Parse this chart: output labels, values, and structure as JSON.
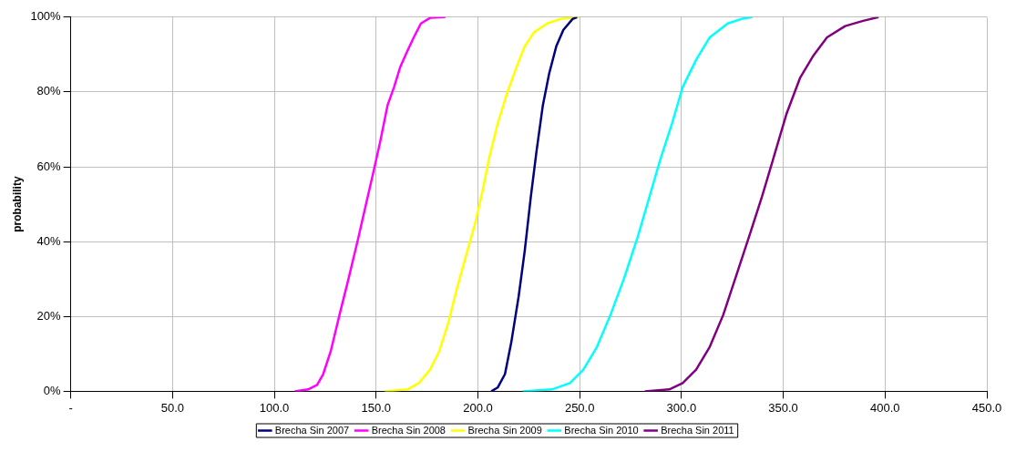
{
  "chart_data": {
    "type": "line",
    "ylabel": "probability",
    "xlim": [
      0,
      450
    ],
    "ylim": [
      0,
      100
    ],
    "xticks": [
      {
        "value": 0,
        "label": "-"
      },
      {
        "value": 50,
        "label": "50.0"
      },
      {
        "value": 100,
        "label": "100.0"
      },
      {
        "value": 150,
        "label": "150.0"
      },
      {
        "value": 200,
        "label": "200.0"
      },
      {
        "value": 250,
        "label": "250.0"
      },
      {
        "value": 300,
        "label": "300.0"
      },
      {
        "value": 350,
        "label": "350.0"
      },
      {
        "value": 400,
        "label": "400.0"
      },
      {
        "value": 450,
        "label": "450.0"
      }
    ],
    "yticks": [
      {
        "value": 0,
        "label": "0%"
      },
      {
        "value": 20,
        "label": "20%"
      },
      {
        "value": 40,
        "label": "40%"
      },
      {
        "value": 60,
        "label": "60%"
      },
      {
        "value": 80,
        "label": "80%"
      },
      {
        "value": 100,
        "label": "100%"
      }
    ],
    "grid": true,
    "legend": "bottom",
    "marker": "none",
    "line_style": "solid",
    "series": [
      {
        "name": "Brecha Sin 2007",
        "color": "#000080",
        "x": [
          206.6,
          209.7,
          213.3,
          216.4,
          220,
          223,
          226,
          228.8,
          231.9,
          235,
          238.5,
          242,
          246.5,
          248.7
        ],
        "values": [
          0,
          1,
          4.6,
          13.1,
          25.3,
          37.5,
          52,
          64.2,
          76.4,
          84.9,
          92.2,
          96.6,
          99.5,
          100
        ]
      },
      {
        "name": "Brecha Sin 2008",
        "color": "#ff00ff",
        "x": [
          110,
          116.6,
          121,
          124,
          127.7,
          132,
          136.5,
          141,
          145.4,
          149,
          152,
          155.6,
          158.8,
          161.8,
          165.4,
          168.5,
          172,
          176.5,
          184
        ],
        "values": [
          0,
          0.5,
          1.7,
          4.6,
          10.7,
          20.4,
          30.2,
          40.4,
          50.9,
          59.4,
          66.7,
          76.4,
          81.3,
          86.6,
          91,
          94.6,
          98.3,
          99.8,
          100
        ]
      },
      {
        "name": "Brecha Sin 2009",
        "color": "#ffff00",
        "x": [
          154.3,
          165.4,
          171,
          176.5,
          181,
          185.3,
          189.8,
          194.2,
          198.6,
          202.2,
          205.3,
          209.7,
          214.1,
          218.6,
          223,
          227.5,
          234,
          240.7,
          249.6
        ],
        "values": [
          0,
          0.5,
          2.2,
          5.8,
          10.7,
          18,
          27.7,
          36.3,
          44.8,
          53.3,
          61.8,
          71.5,
          79.3,
          86.1,
          92.2,
          95.9,
          98.3,
          99.5,
          100
        ]
      },
      {
        "name": "Brecha Sin 2010",
        "color": "#00ffff",
        "x": [
          222,
          236.3,
          245.2,
          251.8,
          258.5,
          265.1,
          271.8,
          278.4,
          283.7,
          289.5,
          295.3,
          300.6,
          307.2,
          313.9,
          322.7,
          329.4,
          334.7
        ],
        "values": [
          0,
          0.5,
          2.2,
          5.8,
          11.9,
          20.4,
          30.2,
          41.1,
          50.9,
          61.8,
          71.5,
          81.3,
          88.6,
          94.6,
          98.3,
          99.5,
          100
        ]
      },
      {
        "name": "Brecha Sin 2011",
        "color": "#800080",
        "x": [
          282,
          294,
          300.6,
          307.2,
          313.9,
          320.5,
          327.2,
          333.8,
          339.6,
          344.9,
          351.5,
          358.2,
          364.9,
          371.5,
          380.4,
          389.2,
          396.8
        ],
        "values": [
          0,
          0.5,
          2.2,
          5.8,
          11.9,
          20.4,
          31.4,
          42.3,
          52.1,
          61.8,
          74,
          83.7,
          89.8,
          94.6,
          97.6,
          99,
          100
        ]
      }
    ]
  }
}
